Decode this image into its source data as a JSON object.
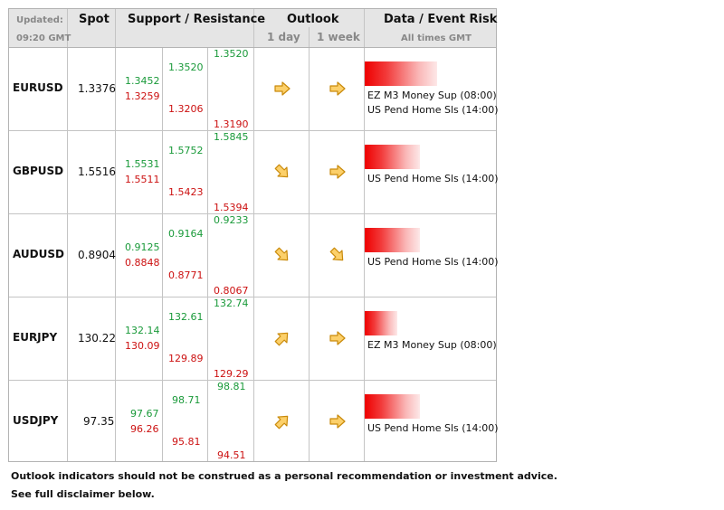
{
  "header": {
    "updated_label": "Updated:",
    "updated_time": "09:20 GMT",
    "spot": "Spot",
    "support_resistance": "Support / Resistance",
    "outlook": "Outlook",
    "outlook_1day": "1 day",
    "outlook_1week": "1 week",
    "data_event_risk": "Data / Event Risk",
    "all_times": "All times GMT"
  },
  "rows": [
    {
      "pair": "EURUSD",
      "spot": "1.3376",
      "c1_top": "1.3452",
      "c1_bot": "1.3259",
      "c2_top": "1.3520",
      "c2_bot": "1.3206",
      "c3_top": "1.3520",
      "c3_bot": "1.3190",
      "outlook_1day": "right-arrow-icon",
      "outlook_1week": "right-arrow-icon",
      "risk_level": 0.55,
      "events": [
        "EZ M3 Money Sup (08:00)",
        "US Pend Home Sls (14:00)"
      ]
    },
    {
      "pair": "GBPUSD",
      "spot": "1.5516",
      "c1_top": "1.5531",
      "c1_bot": "1.5511",
      "c2_top": "1.5752",
      "c2_bot": "1.5423",
      "c3_top": "1.5845",
      "c3_bot": "1.5394",
      "outlook_1day": "down-right-arrow-icon",
      "outlook_1week": "right-arrow-icon",
      "risk_level": 0.42,
      "events": [
        "US Pend Home Sls (14:00)"
      ]
    },
    {
      "pair": "AUDUSD",
      "spot": "0.8904",
      "c1_top": "0.9125",
      "c1_bot": "0.8848",
      "c2_top": "0.9164",
      "c2_bot": "0.8771",
      "c3_top": "0.9233",
      "c3_bot": "0.8067",
      "outlook_1day": "down-right-arrow-icon",
      "outlook_1week": "down-right-arrow-icon",
      "risk_level": 0.42,
      "events": [
        "US Pend Home Sls (14:00)"
      ]
    },
    {
      "pair": "EURJPY",
      "spot": "130.22",
      "c1_top": "132.14",
      "c1_bot": "130.09",
      "c2_top": "132.61",
      "c2_bot": "129.89",
      "c3_top": "132.74",
      "c3_bot": "129.29",
      "outlook_1day": "up-right-arrow-icon",
      "outlook_1week": "right-arrow-icon",
      "risk_level": 0.25,
      "events": [
        "EZ M3 Money Sup (08:00)"
      ]
    },
    {
      "pair": "USDJPY",
      "spot": "97.35",
      "c1_top": "97.67",
      "c1_bot": "96.26",
      "c2_top": "98.71",
      "c2_bot": "95.81",
      "c3_top": "98.81",
      "c3_bot": "94.51",
      "outlook_1day": "up-right-arrow-icon",
      "outlook_1week": "right-arrow-icon",
      "risk_level": 0.42,
      "events": [
        "US Pend Home Sls (14:00)"
      ]
    }
  ],
  "footer": {
    "line1": "Outlook indicators should not be construed as a personal recommendation or investment advice.",
    "line2": "See full disclaimer below."
  }
}
